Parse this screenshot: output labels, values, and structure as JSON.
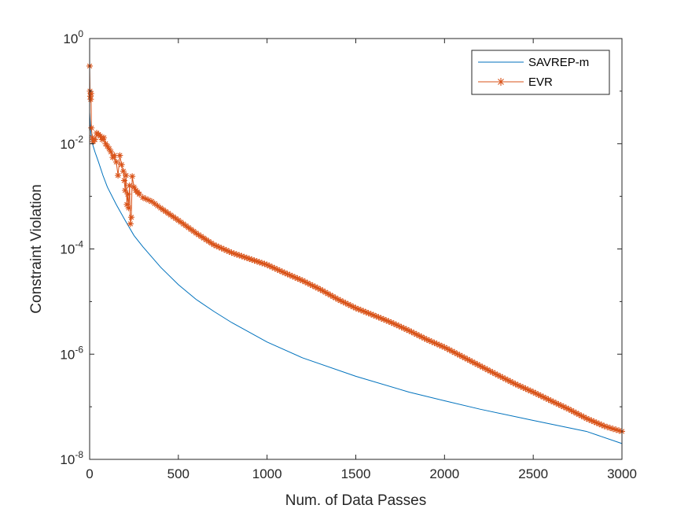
{
  "chart_data": {
    "type": "line",
    "title": "",
    "xlabel": "Num. of Data Passes",
    "ylabel": "Constraint Violation",
    "xscale": "linear",
    "yscale": "log",
    "xlim": [
      0,
      3000
    ],
    "ylim": [
      1e-08,
      1
    ],
    "x_ticks": [
      0,
      500,
      1000,
      1500,
      2000,
      2500,
      3000
    ],
    "x_tick_labels": [
      "0",
      "500",
      "1000",
      "1500",
      "2000",
      "2500",
      "3000"
    ],
    "y_ticks": [
      1e-08,
      1e-06,
      0.0001,
      0.01,
      1
    ],
    "y_tick_labels": [
      {
        "base": "10",
        "exp": "-8"
      },
      {
        "base": "10",
        "exp": "-6"
      },
      {
        "base": "10",
        "exp": "-4"
      },
      {
        "base": "10",
        "exp": "-2"
      },
      {
        "base": "10",
        "exp": "0"
      }
    ],
    "grid": false,
    "legend_position": "top-right",
    "series": [
      {
        "name": "SAVREP-m",
        "color": "#0072BD",
        "marker": "none",
        "x": [
          0,
          5,
          10,
          20,
          30,
          50,
          75,
          100,
          150,
          200,
          250,
          300,
          400,
          500,
          600,
          700,
          800,
          1000,
          1200,
          1500,
          1800,
          2000,
          2200,
          2500,
          2800,
          3000
        ],
        "y": [
          0.04,
          0.02,
          0.012,
          0.009,
          0.007,
          0.0045,
          0.0025,
          0.0015,
          0.0007,
          0.00035,
          0.00018,
          0.00011,
          4.5e-05,
          2.1e-05,
          1.1e-05,
          6.5e-06,
          4e-06,
          1.7e-06,
          8.5e-07,
          3.8e-07,
          1.9e-07,
          1.3e-07,
          9e-08,
          5.5e-08,
          3.4e-08,
          2e-08
        ]
      },
      {
        "name": "EVR",
        "color": "#D95319",
        "marker": "asterisk",
        "x": [
          0,
          2,
          4,
          6,
          8,
          10,
          15,
          20,
          30,
          40,
          50,
          60,
          70,
          80,
          90,
          100,
          110,
          120,
          130,
          140,
          150,
          160,
          170,
          180,
          190,
          195,
          200,
          205,
          210,
          215,
          220,
          225,
          230,
          235,
          240,
          250,
          260,
          270,
          280,
          300,
          350,
          400,
          500,
          600,
          700,
          800,
          900,
          1000,
          1100,
          1200,
          1300,
          1400,
          1500,
          1600,
          1700,
          1800,
          1900,
          2000,
          2100,
          2200,
          2300,
          2400,
          2500,
          2600,
          2700,
          2800,
          2900,
          2950,
          3000
        ],
        "y": [
          0.3,
          0.1,
          0.08,
          0.07,
          0.09,
          0.02,
          0.013,
          0.011,
          0.012,
          0.016,
          0.015,
          0.014,
          0.012,
          0.013,
          0.01,
          0.009,
          0.008,
          0.007,
          0.0055,
          0.006,
          0.0045,
          0.0025,
          0.006,
          0.004,
          0.003,
          0.002,
          0.0013,
          0.0025,
          0.0007,
          0.0011,
          0.0006,
          0.0016,
          0.0003,
          0.0004,
          0.0024,
          0.0015,
          0.0013,
          0.0012,
          0.0011,
          0.00095,
          0.0008,
          0.0006,
          0.00035,
          0.0002,
          0.00012,
          8.5e-05,
          6.5e-05,
          5e-05,
          3.5e-05,
          2.5e-05,
          1.7e-05,
          1.1e-05,
          7.5e-06,
          5.5e-06,
          4e-06,
          2.8e-06,
          1.9e-06,
          1.35e-06,
          9e-07,
          6e-07,
          4e-07,
          2.7e-07,
          1.9e-07,
          1.3e-07,
          9e-08,
          6e-08,
          4.3e-08,
          3.8e-08,
          3.4e-08
        ]
      }
    ]
  }
}
